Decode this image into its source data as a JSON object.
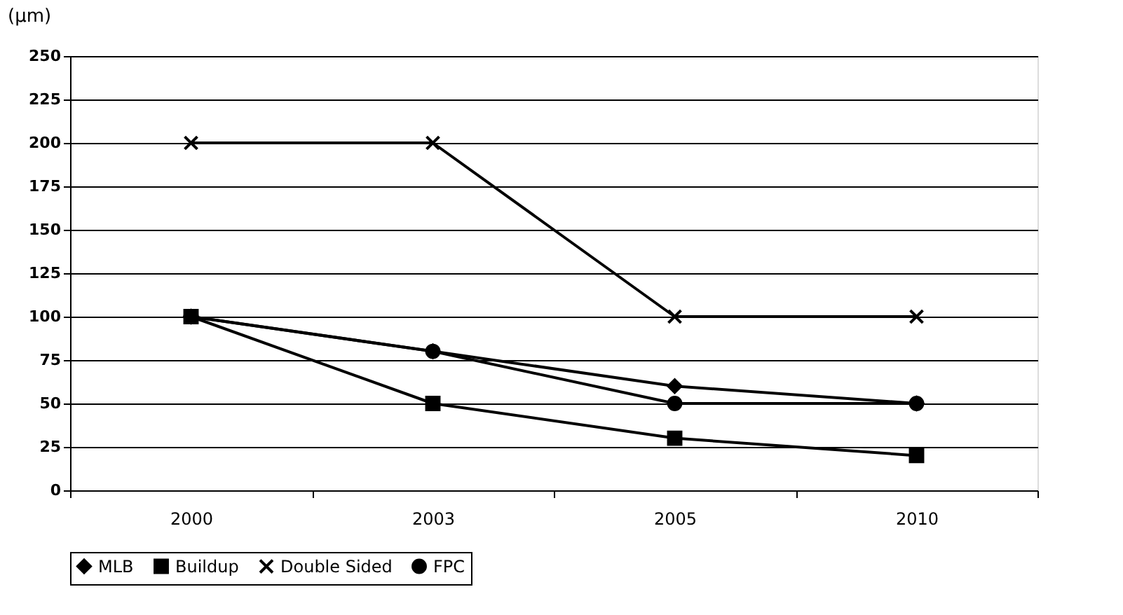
{
  "chart_data": {
    "type": "line",
    "ylabel": "(μm)",
    "categories": [
      "2000",
      "2003",
      "2005",
      "2010"
    ],
    "series": [
      {
        "name": "MLB",
        "color": "#000000",
        "marker": "diamond",
        "values": [
          100,
          80,
          60,
          50
        ]
      },
      {
        "name": "Buildup",
        "color": "#000000",
        "marker": "square",
        "values": [
          100,
          50,
          30,
          20
        ]
      },
      {
        "name": "Double Sided",
        "color": "#000000",
        "marker": "cross",
        "values": [
          200,
          200,
          100,
          100
        ]
      },
      {
        "name": "FPC",
        "color": "#000000",
        "marker": "circle",
        "values": [
          100,
          80,
          50,
          50
        ]
      }
    ],
    "ylim": [
      0,
      250
    ],
    "yticks": [
      0,
      25,
      50,
      75,
      100,
      125,
      150,
      175,
      200,
      225,
      250
    ],
    "grid": "y",
    "legend": "bottom"
  }
}
